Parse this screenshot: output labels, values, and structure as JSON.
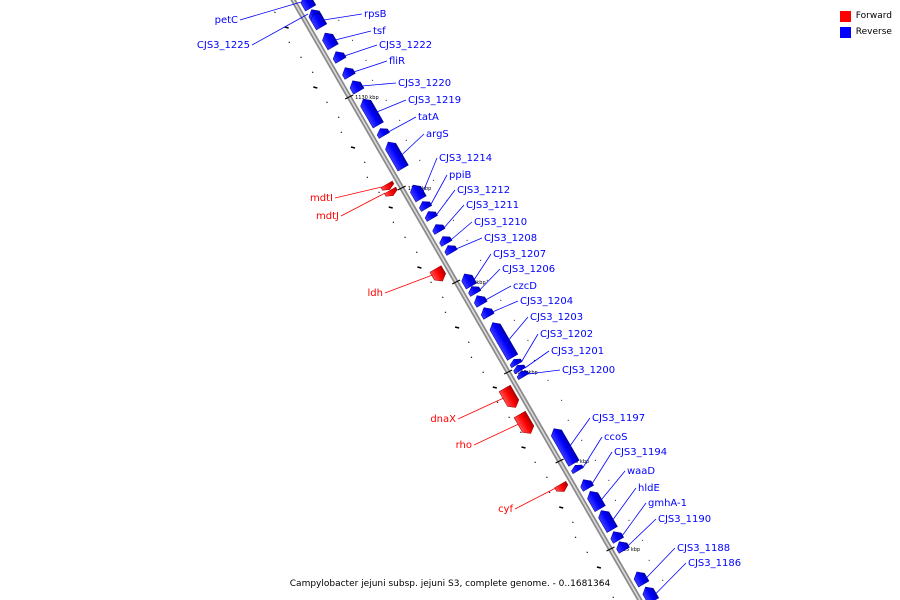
{
  "legend": {
    "forward": {
      "label": "Forward",
      "color": "#ff0000"
    },
    "reverse": {
      "label": "Reverse",
      "color": "#0000ff"
    }
  },
  "caption": "Campylobacter jejuni subsp. jejuni S3, complete genome. - 0..1681364",
  "genome_map": {
    "ticks": [
      {
        "label": "1130 kbp"
      },
      {
        "label": "1125 kbp"
      },
      {
        "label": "1120 kbp"
      },
      {
        "label": "1115 kbp"
      },
      {
        "label": "1110 kbp"
      },
      {
        "label": "1105 kbp"
      }
    ],
    "features": [
      {
        "label": "petC",
        "strand": "reverse"
      },
      {
        "label": "CJS3_1225",
        "strand": "reverse"
      },
      {
        "label": "rpsB",
        "strand": "reverse"
      },
      {
        "label": "tsf",
        "strand": "reverse"
      },
      {
        "label": "CJS3_1222",
        "strand": "reverse"
      },
      {
        "label": "fliR",
        "strand": "reverse"
      },
      {
        "label": "CJS3_1220",
        "strand": "reverse"
      },
      {
        "label": "CJS3_1219",
        "strand": "reverse"
      },
      {
        "label": "tatA",
        "strand": "reverse"
      },
      {
        "label": "argS",
        "strand": "reverse"
      },
      {
        "label": "CJS3_1214",
        "strand": "reverse"
      },
      {
        "label": "ppiB",
        "strand": "reverse"
      },
      {
        "label": "mdtI",
        "strand": "forward"
      },
      {
        "label": "mdtJ",
        "strand": "forward"
      },
      {
        "label": "CJS3_1212",
        "strand": "reverse"
      },
      {
        "label": "CJS3_1211",
        "strand": "reverse"
      },
      {
        "label": "CJS3_1210",
        "strand": "reverse"
      },
      {
        "label": "CJS3_1208",
        "strand": "reverse"
      },
      {
        "label": "CJS3_1207",
        "strand": "reverse"
      },
      {
        "label": "CJS3_1206",
        "strand": "reverse"
      },
      {
        "label": "ldh",
        "strand": "forward"
      },
      {
        "label": "czcD",
        "strand": "reverse"
      },
      {
        "label": "CJS3_1204",
        "strand": "reverse"
      },
      {
        "label": "CJS3_1203",
        "strand": "reverse"
      },
      {
        "label": "CJS3_1202",
        "strand": "reverse"
      },
      {
        "label": "CJS3_1201",
        "strand": "reverse"
      },
      {
        "label": "CJS3_1200",
        "strand": "reverse"
      },
      {
        "label": "dnaX",
        "strand": "forward"
      },
      {
        "label": "rho",
        "strand": "forward"
      },
      {
        "label": "CJS3_1197",
        "strand": "reverse"
      },
      {
        "label": "ccoS",
        "strand": "reverse"
      },
      {
        "label": "CJS3_1194",
        "strand": "reverse"
      },
      {
        "label": "waaD",
        "strand": "reverse"
      },
      {
        "label": "hldE",
        "strand": "reverse"
      },
      {
        "label": "cyf",
        "strand": "forward"
      },
      {
        "label": "gmhA-1",
        "strand": "reverse"
      },
      {
        "label": "CJS3_1190",
        "strand": "reverse"
      },
      {
        "label": "CJS3_1188",
        "strand": "reverse"
      },
      {
        "label": "CJS3_1186",
        "strand": "reverse"
      }
    ]
  }
}
